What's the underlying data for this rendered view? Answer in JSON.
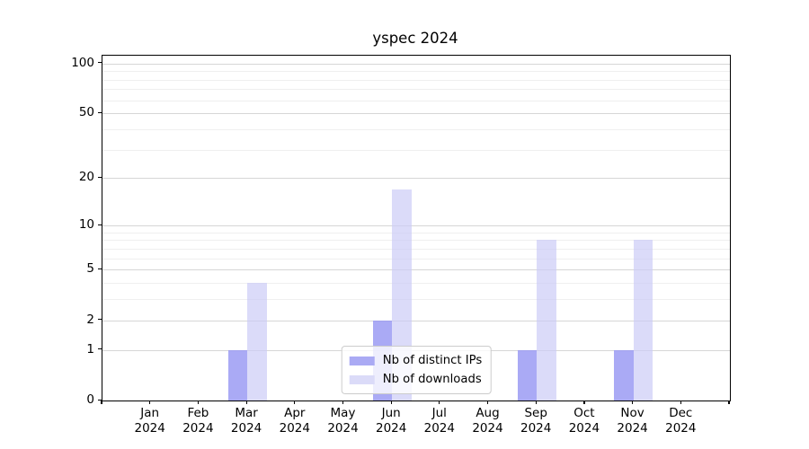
{
  "chart_data": {
    "type": "bar",
    "title": "yspec 2024",
    "categories": [
      "Jan",
      "Feb",
      "Mar",
      "Apr",
      "May",
      "Jun",
      "Jul",
      "Aug",
      "Sep",
      "Oct",
      "Nov",
      "Dec"
    ],
    "x_year": "2024",
    "series": [
      {
        "name": "Nb of distinct IPs",
        "color": "#aaaaf4",
        "fill": "rgba(149,149,243,0.8)",
        "values": [
          0,
          0,
          1,
          0,
          0,
          2,
          0,
          0,
          1,
          0,
          1,
          0
        ]
      },
      {
        "name": "Nb of downloads",
        "color": "#dbdbf8",
        "fill": "rgba(204,204,247,0.7)",
        "values": [
          0,
          0,
          4,
          0,
          0,
          17,
          0,
          0,
          8,
          0,
          8,
          0
        ]
      }
    ],
    "y_axis": {
      "scale": "log1p",
      "ticks": [
        0,
        1,
        2,
        5,
        10,
        20,
        50,
        100
      ],
      "minor_ticks": [
        3,
        4,
        6,
        7,
        8,
        9,
        30,
        40,
        60,
        70,
        80,
        90
      ],
      "max": 111.3
    },
    "xlabel": "",
    "ylabel": "",
    "grid": "both",
    "grid_major_color": "#d6d6d6",
    "grid_minor_color": "#efefef",
    "legend": {
      "position": "lower center"
    }
  }
}
